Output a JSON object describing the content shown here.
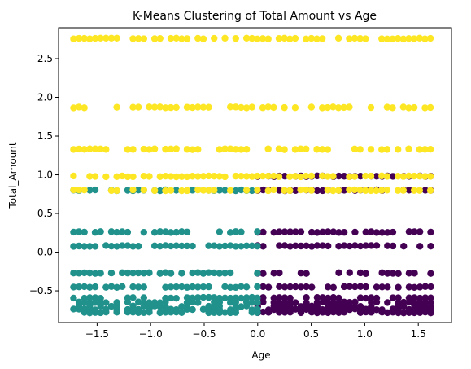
{
  "chart_data": {
    "type": "scatter",
    "title": "K-Means Clustering of Total Amount vs Age",
    "xlabel": "Age",
    "ylabel": "Total_Amount",
    "xlim": [
      -1.86,
      1.81
    ],
    "ylim": [
      -0.91,
      2.9
    ],
    "xticks": [
      -1.5,
      -1.0,
      -0.5,
      0.0,
      0.5,
      1.0,
      1.5
    ],
    "xtick_labels": [
      "−1.5",
      "−1.0",
      "−0.5",
      "0.0",
      "0.5",
      "1.0",
      "1.5"
    ],
    "yticks": [
      -0.5,
      0.0,
      0.5,
      1.0,
      1.5,
      2.0,
      2.5
    ],
    "ytick_labels": [
      "−0.5",
      "0.0",
      "0.5",
      "1.0",
      "1.5",
      "2.0",
      "2.5"
    ],
    "grid": false,
    "legend": "none",
    "clusters": [
      {
        "color": "#440154",
        "x_range": [
          0.0,
          1.65
        ],
        "levels": [
          -0.78,
          -0.74,
          -0.7,
          -0.65,
          -0.59,
          -0.45,
          -0.27,
          0.08,
          0.26,
          0.8,
          0.98
        ]
      },
      {
        "color": "#21918c",
        "x_range": [
          -1.72,
          0.0
        ],
        "levels": [
          -0.78,
          -0.74,
          -0.7,
          -0.65,
          -0.59,
          -0.45,
          -0.27,
          0.08,
          0.26,
          0.8
        ]
      },
      {
        "color": "#fde725",
        "x_range": [
          -1.72,
          1.65
        ],
        "levels": [
          0.8,
          0.98,
          1.33,
          1.87,
          2.76
        ]
      }
    ]
  }
}
